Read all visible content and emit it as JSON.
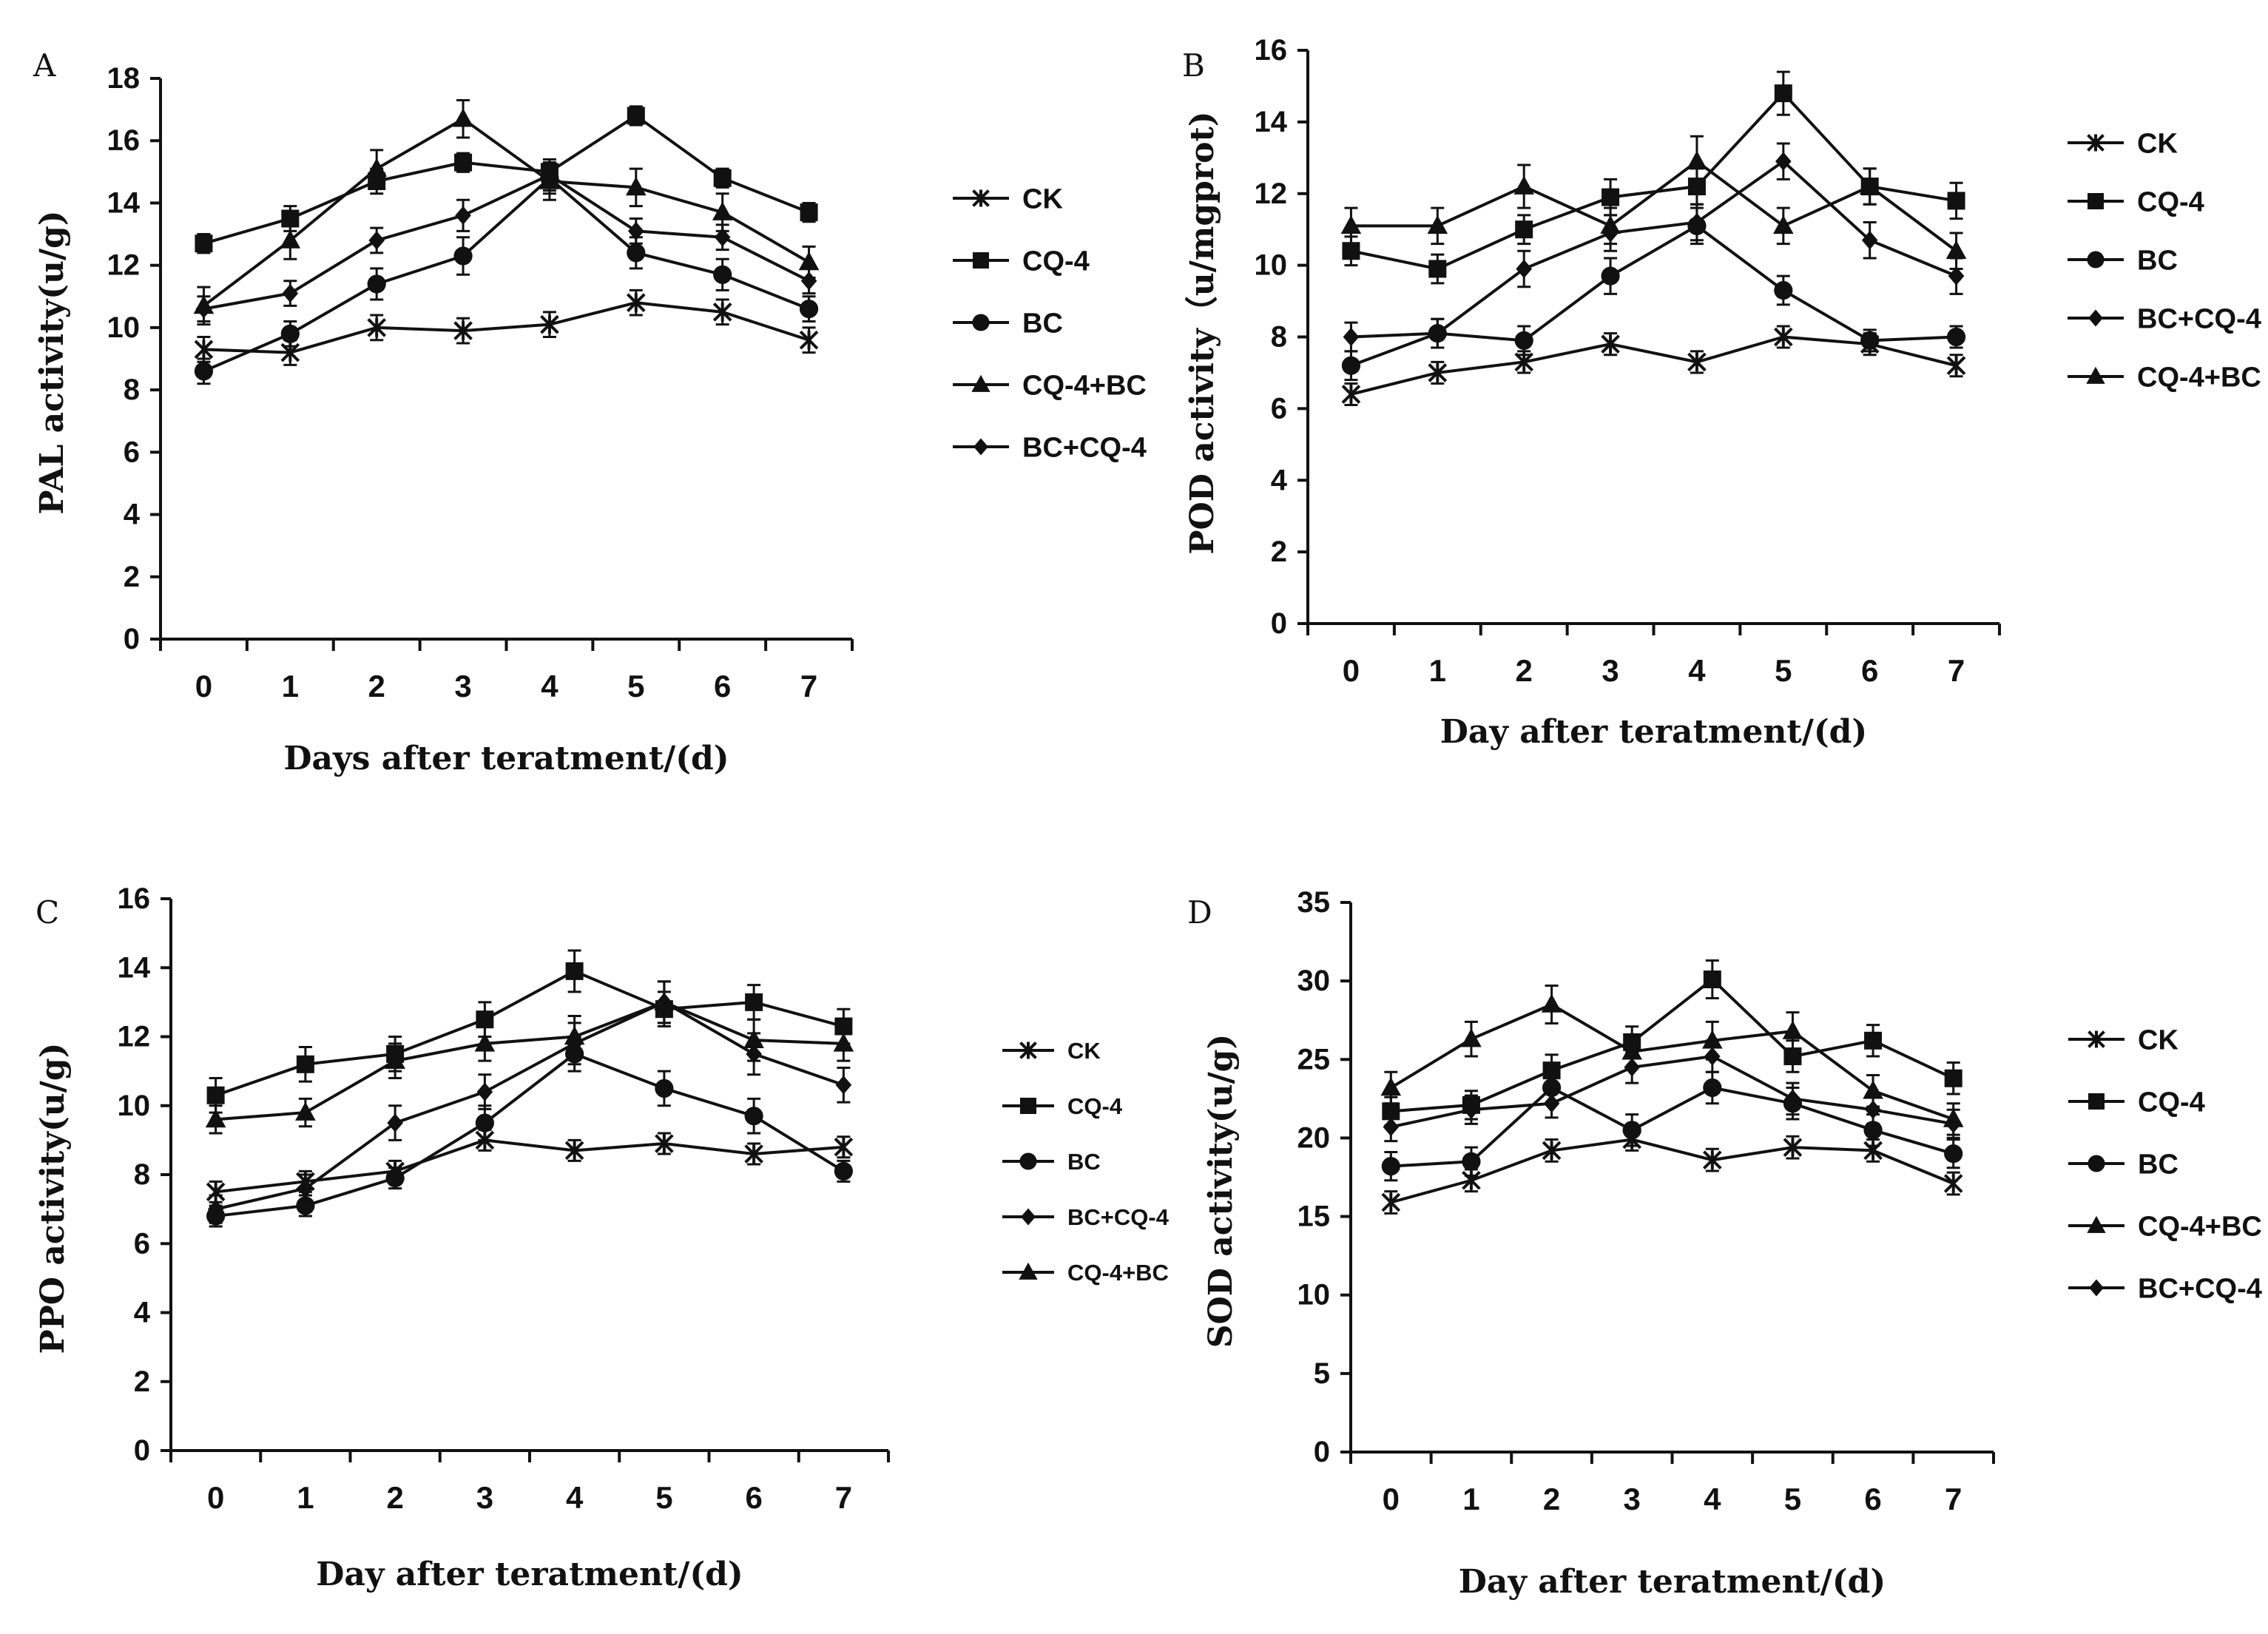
{
  "chart_data": [
    {
      "panel_label": "A",
      "type": "line",
      "xlabel": "Days after teratment/(d)",
      "ylabel": "PAL activity(u/g)",
      "x": [
        0,
        1,
        2,
        3,
        4,
        5,
        6,
        7
      ],
      "ylim": [
        0,
        18
      ],
      "yticks": [
        0,
        2,
        4,
        6,
        8,
        10,
        12,
        14,
        16,
        18
      ],
      "legend_position": "right",
      "series": [
        {
          "name": "CK",
          "marker": "asterisk",
          "values": [
            9.3,
            9.2,
            10.0,
            9.9,
            10.1,
            10.8,
            10.5,
            9.6
          ],
          "err": [
            0.4,
            0.4,
            0.4,
            0.4,
            0.4,
            0.4,
            0.4,
            0.4
          ]
        },
        {
          "name": "CQ-4",
          "marker": "square",
          "values": [
            12.7,
            13.5,
            14.7,
            15.3,
            15.0,
            16.8,
            14.8,
            13.7
          ],
          "err": [
            0.3,
            0.4,
            0.4,
            0.3,
            0.3,
            0.3,
            0.3,
            0.3
          ]
        },
        {
          "name": "BC",
          "marker": "circle",
          "values": [
            8.6,
            9.8,
            11.4,
            12.3,
            14.8,
            12.4,
            11.7,
            10.6
          ],
          "err": [
            0.4,
            0.4,
            0.5,
            0.6,
            0.5,
            0.5,
            0.5,
            0.4
          ]
        },
        {
          "name": "CQ-4+BC",
          "marker": "triangle",
          "values": [
            10.7,
            12.8,
            15.1,
            16.7,
            14.7,
            14.5,
            13.7,
            12.1
          ],
          "err": [
            0.6,
            0.6,
            0.6,
            0.6,
            0.6,
            0.6,
            0.6,
            0.5
          ]
        },
        {
          "name": "BC+CQ-4",
          "marker": "diamond",
          "values": [
            10.6,
            11.1,
            12.8,
            13.6,
            14.9,
            13.1,
            12.9,
            11.5
          ],
          "err": [
            0.4,
            0.4,
            0.4,
            0.5,
            0.5,
            0.4,
            0.4,
            0.4
          ]
        }
      ]
    },
    {
      "panel_label": "B",
      "type": "line",
      "xlabel": "Day after teratment/(d)",
      "ylabel": "POD activity（u/mgprot)",
      "x": [
        0,
        1,
        2,
        3,
        4,
        5,
        6,
        7
      ],
      "ylim": [
        0,
        16
      ],
      "yticks": [
        0,
        2,
        4,
        6,
        8,
        10,
        12,
        14,
        16
      ],
      "legend_position": "right",
      "series": [
        {
          "name": "CK",
          "marker": "asterisk",
          "values": [
            6.4,
            7.0,
            7.3,
            7.8,
            7.3,
            8.0,
            7.8,
            7.2
          ],
          "err": [
            0.3,
            0.3,
            0.3,
            0.3,
            0.3,
            0.3,
            0.3,
            0.3
          ]
        },
        {
          "name": "CQ-4",
          "marker": "square",
          "values": [
            10.4,
            9.9,
            11.0,
            11.9,
            12.2,
            14.8,
            12.2,
            11.8
          ],
          "err": [
            0.4,
            0.4,
            0.4,
            0.5,
            0.5,
            0.6,
            0.5,
            0.5
          ]
        },
        {
          "name": "BC",
          "marker": "circle",
          "values": [
            7.2,
            8.1,
            7.9,
            9.7,
            11.1,
            9.3,
            7.9,
            8.0
          ],
          "err": [
            0.4,
            0.4,
            0.4,
            0.5,
            0.5,
            0.4,
            0.3,
            0.3
          ]
        },
        {
          "name": "BC+CQ-4",
          "marker": "diamond",
          "values": [
            8.0,
            8.1,
            9.9,
            10.9,
            11.2,
            12.9,
            10.7,
            9.7
          ],
          "err": [
            0.4,
            0.4,
            0.5,
            0.5,
            0.5,
            0.5,
            0.5,
            0.5
          ]
        },
        {
          "name": "CQ-4+BC",
          "marker": "triangle",
          "values": [
            11.1,
            11.1,
            12.2,
            11.1,
            12.9,
            11.1,
            12.2,
            10.4
          ],
          "err": [
            0.5,
            0.5,
            0.6,
            0.5,
            0.7,
            0.5,
            0.5,
            0.5
          ]
        }
      ]
    },
    {
      "panel_label": "C",
      "type": "line",
      "xlabel": "Day after teratment/(d)",
      "ylabel": "PPO activity(u/g)",
      "x": [
        0,
        1,
        2,
        3,
        4,
        5,
        6,
        7
      ],
      "ylim": [
        0,
        16
      ],
      "yticks": [
        0,
        2,
        4,
        6,
        8,
        10,
        12,
        14,
        16
      ],
      "legend_position": "right",
      "series": [
        {
          "name": "CK",
          "marker": "asterisk",
          "values": [
            7.5,
            7.8,
            8.1,
            9.0,
            8.7,
            8.9,
            8.6,
            8.8
          ],
          "err": [
            0.3,
            0.3,
            0.3,
            0.3,
            0.3,
            0.3,
            0.3,
            0.3
          ]
        },
        {
          "name": "CQ-4",
          "marker": "square",
          "values": [
            10.3,
            11.2,
            11.5,
            12.5,
            13.9,
            12.8,
            13.0,
            12.3
          ],
          "err": [
            0.5,
            0.5,
            0.5,
            0.5,
            0.6,
            0.5,
            0.5,
            0.5
          ]
        },
        {
          "name": "BC",
          "marker": "circle",
          "values": [
            6.8,
            7.1,
            7.9,
            9.5,
            11.5,
            10.5,
            9.7,
            8.1
          ],
          "err": [
            0.3,
            0.3,
            0.3,
            0.5,
            0.5,
            0.5,
            0.5,
            0.3
          ]
        },
        {
          "name": "BC+CQ-4",
          "marker": "diamond",
          "values": [
            7.0,
            7.6,
            9.5,
            10.4,
            11.8,
            13.0,
            11.5,
            10.6
          ],
          "err": [
            0.4,
            0.4,
            0.5,
            0.5,
            0.6,
            0.6,
            0.6,
            0.5
          ]
        },
        {
          "name": "CQ-4+BC",
          "marker": "triangle",
          "values": [
            9.6,
            9.8,
            11.3,
            11.8,
            12.0,
            13.0,
            11.9,
            11.8
          ],
          "err": [
            0.4,
            0.4,
            0.5,
            0.5,
            0.6,
            0.6,
            0.6,
            0.5
          ]
        }
      ]
    },
    {
      "panel_label": "D",
      "type": "line",
      "xlabel": "Day after teratment/(d)",
      "ylabel": "SOD activity(u/g)",
      "x": [
        0,
        1,
        2,
        3,
        4,
        5,
        6,
        7
      ],
      "ylim": [
        0,
        35
      ],
      "yticks": [
        0,
        5,
        10,
        15,
        20,
        25,
        30,
        35
      ],
      "legend_position": "right",
      "series": [
        {
          "name": "CK",
          "marker": "asterisk",
          "values": [
            15.9,
            17.3,
            19.2,
            19.9,
            18.6,
            19.4,
            19.2,
            17.1
          ],
          "err": [
            0.7,
            0.7,
            0.7,
            0.7,
            0.7,
            0.7,
            0.7,
            0.7
          ]
        },
        {
          "name": "CQ-4",
          "marker": "square",
          "values": [
            21.7,
            22.1,
            24.3,
            26.1,
            30.1,
            25.2,
            26.2,
            23.8
          ],
          "err": [
            0.9,
            0.9,
            1.0,
            1.0,
            1.2,
            1.0,
            1.0,
            1.0
          ]
        },
        {
          "name": "BC",
          "marker": "circle",
          "values": [
            18.2,
            18.5,
            23.2,
            20.5,
            23.2,
            22.2,
            20.5,
            19.0
          ],
          "err": [
            0.9,
            0.9,
            1.0,
            1.0,
            1.0,
            1.0,
            1.0,
            0.9
          ]
        },
        {
          "name": "CQ-4+BC",
          "marker": "triangle",
          "values": [
            23.2,
            26.3,
            28.5,
            25.5,
            26.2,
            26.8,
            23.0,
            21.2
          ],
          "err": [
            1.0,
            1.1,
            1.2,
            1.0,
            1.2,
            1.2,
            1.0,
            1.0
          ]
        },
        {
          "name": "BC+CQ-4",
          "marker": "diamond",
          "values": [
            20.7,
            21.8,
            22.2,
            24.5,
            25.2,
            22.5,
            21.8,
            20.9
          ],
          "err": [
            0.9,
            0.9,
            0.9,
            1.0,
            1.0,
            1.0,
            0.9,
            0.9
          ]
        }
      ]
    }
  ]
}
